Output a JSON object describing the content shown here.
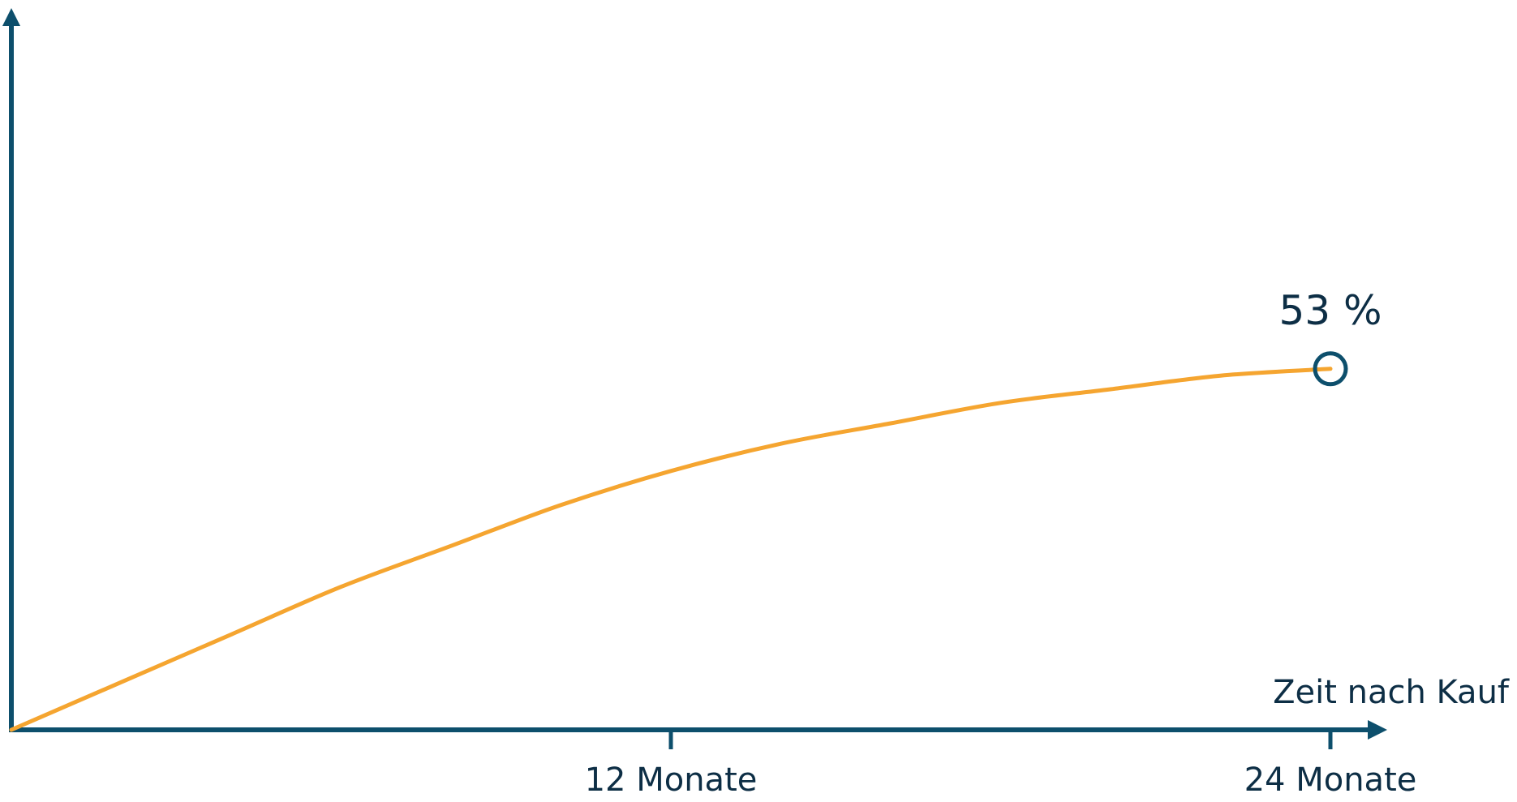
{
  "chart_data": {
    "type": "line",
    "xlabel": "Zeit nach Kauf",
    "ylabel": "",
    "xlim": [
      0,
      24
    ],
    "ylim": [
      0,
      100
    ],
    "x_ticks": [
      {
        "value": 12,
        "label": "12 Monate"
      },
      {
        "value": 24,
        "label": "24 Monate"
      }
    ],
    "series": [
      {
        "x": [
          0,
          2,
          4,
          6,
          8,
          10,
          12,
          14,
          16,
          18,
          20,
          22,
          24
        ],
        "values": [
          0,
          7,
          14,
          21,
          27,
          33,
          38,
          42,
          45,
          48,
          50,
          52,
          53
        ]
      }
    ],
    "annotation": {
      "x": 24,
      "y": 53,
      "text": "53 %"
    },
    "grid": false,
    "colors": {
      "axis": "#0d4f6c",
      "line": "#f5a530",
      "text": "#0d2e45"
    }
  }
}
